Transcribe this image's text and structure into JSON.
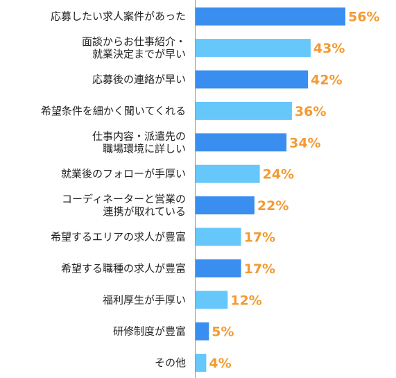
{
  "colors": {
    "dark_bar": "#3A8EF0",
    "light_bar": "#66C7FA",
    "value_label": "#F39A33",
    "category_text": "#222222",
    "axis": "#999999"
  },
  "chart_data": {
    "type": "bar",
    "orientation": "horizontal",
    "categories": [
      [
        "応募したい求人案件があった"
      ],
      [
        "面談からお仕事紹介・",
        "就業決定までが早い"
      ],
      [
        "応募後の連絡が早い"
      ],
      [
        "希望条件を細かく聞いてくれる"
      ],
      [
        "仕事内容・派遣先の",
        "職場環境に詳しい"
      ],
      [
        "就業後のフォローが手厚い"
      ],
      [
        "コーディネーターと営業の",
        "連携が取れている"
      ],
      [
        "希望するエリアの求人が豊富"
      ],
      [
        "希望する職種の求人が豊富"
      ],
      [
        "福利厚生が手厚い"
      ],
      [
        "研修制度が豊富"
      ],
      [
        "その他"
      ]
    ],
    "values": [
      56,
      43,
      42,
      36,
      34,
      24,
      22,
      17,
      17,
      12,
      5,
      4
    ],
    "value_labels": [
      "56%",
      "43%",
      "42%",
      "36%",
      "34%",
      "24%",
      "22%",
      "17%",
      "17%",
      "12%",
      "5%",
      "4%"
    ],
    "bar_shade": [
      "dark",
      "light",
      "dark",
      "light",
      "dark",
      "light",
      "dark",
      "light",
      "dark",
      "light",
      "dark",
      "light"
    ],
    "unit": "%",
    "xlim": [
      0,
      60
    ],
    "grid": false,
    "legend": "none",
    "title": "",
    "xlabel": "",
    "ylabel": ""
  }
}
